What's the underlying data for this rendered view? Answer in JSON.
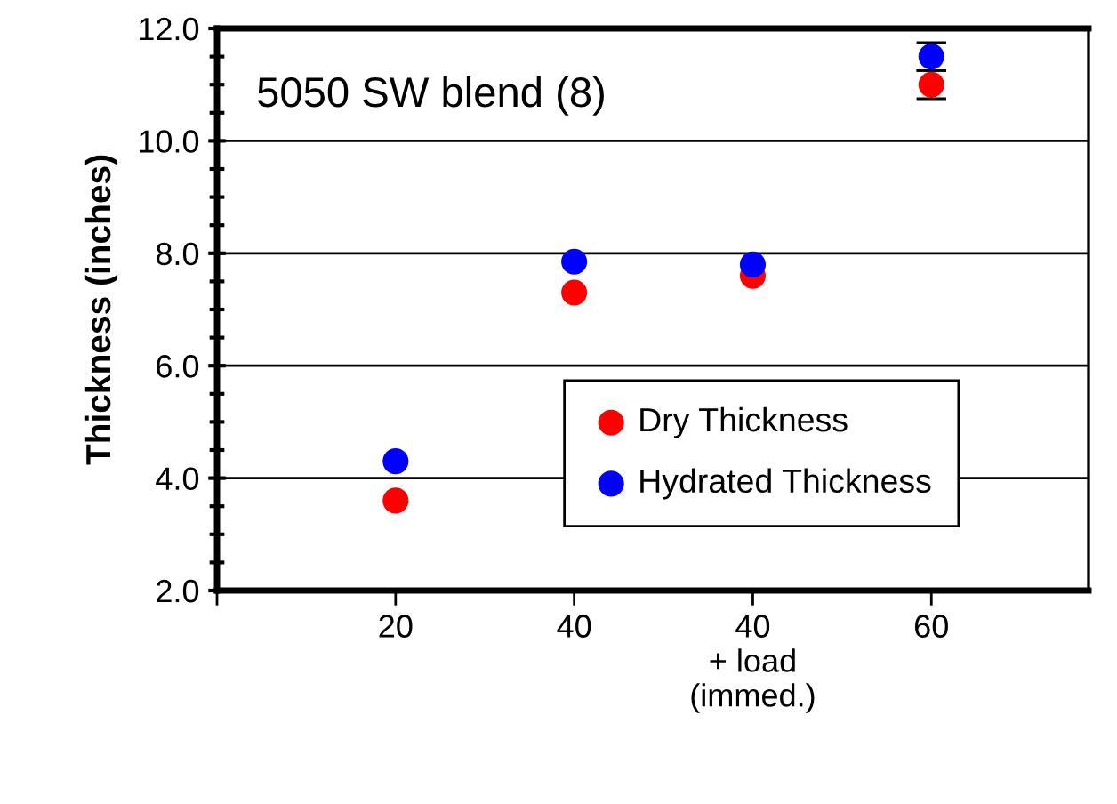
{
  "chart_data": {
    "type": "scatter",
    "ylabel": "Thickness (inches)",
    "annotations": [
      "5050 SW blend (8)"
    ],
    "categories": [
      null,
      "20",
      "40",
      "40\n+ load\n(immed.)",
      "60"
    ],
    "series": [
      {
        "name": "Dry Thickness",
        "color": "#ff0000",
        "values": [
          null,
          3.6,
          7.3,
          7.6,
          11.0
        ],
        "errors": [
          null,
          null,
          null,
          null,
          0.25
        ]
      },
      {
        "name": "Hydrated Thickness",
        "color": "#0000ff",
        "values": [
          null,
          4.3,
          7.85,
          7.8,
          11.5
        ],
        "errors": [
          null,
          null,
          null,
          null,
          0.25
        ]
      }
    ],
    "ylim": [
      2,
      12
    ],
    "yticks": [
      {
        "value": 2,
        "label": "2.0"
      },
      {
        "value": 4,
        "label": "4.0"
      },
      {
        "value": 6,
        "label": "6.0"
      },
      {
        "value": 8,
        "label": "8.0"
      },
      {
        "value": 10,
        "label": "10.0"
      },
      {
        "value": 12,
        "label": "12.0"
      }
    ],
    "grid": "y",
    "legend": "bottom right",
    "marker": "circle"
  }
}
